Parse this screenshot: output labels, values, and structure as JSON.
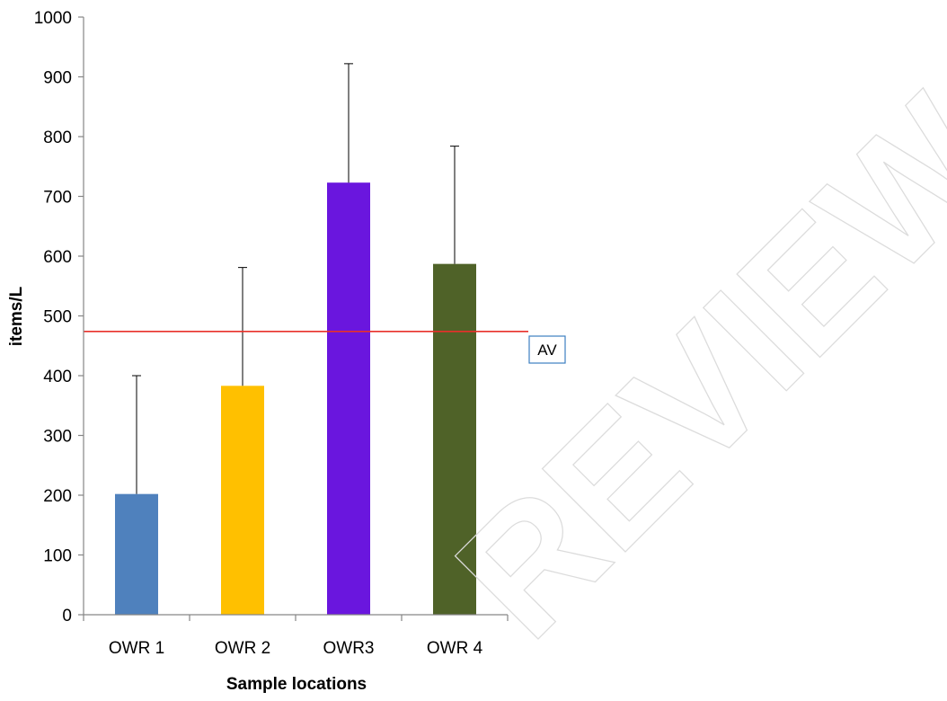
{
  "chart_data": {
    "type": "bar",
    "categories": [
      "OWR 1",
      "OWR 2",
      "OWR3",
      "OWR 4"
    ],
    "values": [
      202,
      383,
      723,
      587
    ],
    "error_upper": [
      400,
      581,
      922,
      784
    ],
    "colors": [
      "#4f81bd",
      "#ffc000",
      "#6a16de",
      "#4f6228"
    ],
    "ylabel": "items/L",
    "xlabel": "Sample locations",
    "ylim": [
      0,
      1000
    ],
    "yticks": [
      0,
      100,
      200,
      300,
      400,
      500,
      600,
      700,
      800,
      900,
      1000
    ],
    "grid": false,
    "reference_line": {
      "label": "AV",
      "value": 474,
      "color": "#e8302a"
    }
  },
  "watermark": "REVIEW"
}
